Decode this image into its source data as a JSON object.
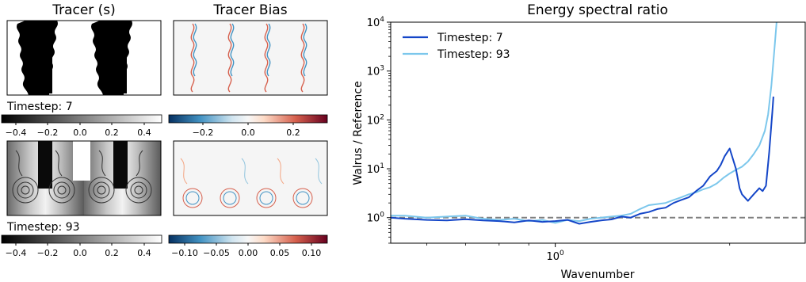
{
  "left_panels": {
    "tracer_title": "Tracer (s)",
    "bias_title": "Tracer Bias",
    "rows": [
      {
        "timestep_label": "Timestep: 7",
        "tracer_colorbar_ticks": [
          "−0.4",
          "−0.2",
          "0.0",
          "0.2",
          "0.4"
        ],
        "bias_colorbar_ticks": [
          "−0.2",
          "0.0",
          "0.2"
        ]
      },
      {
        "timestep_label": "Timestep: 93",
        "tracer_colorbar_ticks": [
          "−0.4",
          "−0.2",
          "0.0",
          "0.2",
          "0.4"
        ],
        "bias_colorbar_ticks": [
          "−0.10",
          "−0.05",
          "0.00",
          "0.05",
          "0.10"
        ]
      }
    ],
    "colormaps": {
      "tracer": [
        "#000000",
        "#ffffff"
      ],
      "bias": [
        "#2166ac",
        "#f7f7f7",
        "#b2182b"
      ]
    }
  },
  "chart_data": {
    "type": "line",
    "title": "Energy spectral ratio",
    "xlabel": "Wavenumber",
    "ylabel": "Walrus / Reference",
    "xscale": "log",
    "yscale": "log",
    "xlim": [
      0.52,
      2.7
    ],
    "ylim": [
      0.3,
      10000
    ],
    "yticks": [
      "10^0",
      "10^1",
      "10^2",
      "10^3",
      "10^4"
    ],
    "xticks": [
      "10^0"
    ],
    "reference_line": {
      "y": 1.0,
      "style": "dashed",
      "color": "#808080"
    },
    "legend_position": "upper-left",
    "series": [
      {
        "name": "Timestep: 7",
        "color": "#1446c8",
        "x": [
          0.52,
          0.55,
          0.6,
          0.65,
          0.7,
          0.75,
          0.8,
          0.85,
          0.9,
          0.95,
          1.0,
          1.05,
          1.1,
          1.15,
          1.2,
          1.25,
          1.3,
          1.35,
          1.4,
          1.45,
          1.5,
          1.55,
          1.6,
          1.65,
          1.7,
          1.75,
          1.8,
          1.85,
          1.9,
          1.93,
          1.96,
          2.0,
          2.05,
          2.08,
          2.1,
          2.15,
          2.2,
          2.25,
          2.28,
          2.31,
          2.34,
          2.37,
          2.38
        ],
        "y": [
          1.0,
          0.95,
          0.9,
          0.88,
          0.93,
          0.88,
          0.85,
          0.8,
          0.88,
          0.82,
          0.85,
          0.9,
          0.75,
          0.82,
          0.88,
          0.92,
          1.05,
          1.0,
          1.2,
          1.3,
          1.5,
          1.6,
          2.0,
          2.3,
          2.6,
          3.5,
          4.5,
          7.0,
          9.0,
          12,
          18,
          26,
          10,
          4.0,
          3.0,
          2.2,
          3.0,
          4.0,
          3.5,
          4.5,
          22,
          150,
          300
        ]
      },
      {
        "name": "Timestep: 93",
        "color": "#7cc7ec",
        "x": [
          0.52,
          0.55,
          0.6,
          0.65,
          0.7,
          0.75,
          0.8,
          0.85,
          0.9,
          0.95,
          1.0,
          1.05,
          1.1,
          1.15,
          1.2,
          1.25,
          1.3,
          1.35,
          1.4,
          1.45,
          1.5,
          1.55,
          1.6,
          1.65,
          1.7,
          1.75,
          1.8,
          1.85,
          1.9,
          1.95,
          2.0,
          2.05,
          2.1,
          2.15,
          2.2,
          2.25,
          2.3,
          2.33,
          2.36,
          2.39,
          2.41
        ],
        "y": [
          1.1,
          1.1,
          1.0,
          1.05,
          1.1,
          0.95,
          0.9,
          0.95,
          0.85,
          0.9,
          0.78,
          0.9,
          0.85,
          0.95,
          1.0,
          1.05,
          1.1,
          1.2,
          1.5,
          1.8,
          1.9,
          2.0,
          2.3,
          2.6,
          3.0,
          3.3,
          3.8,
          4.2,
          5.0,
          6.5,
          8.0,
          9.5,
          11,
          14,
          20,
          30,
          60,
          130,
          500,
          3000,
          10000
        ]
      }
    ]
  }
}
